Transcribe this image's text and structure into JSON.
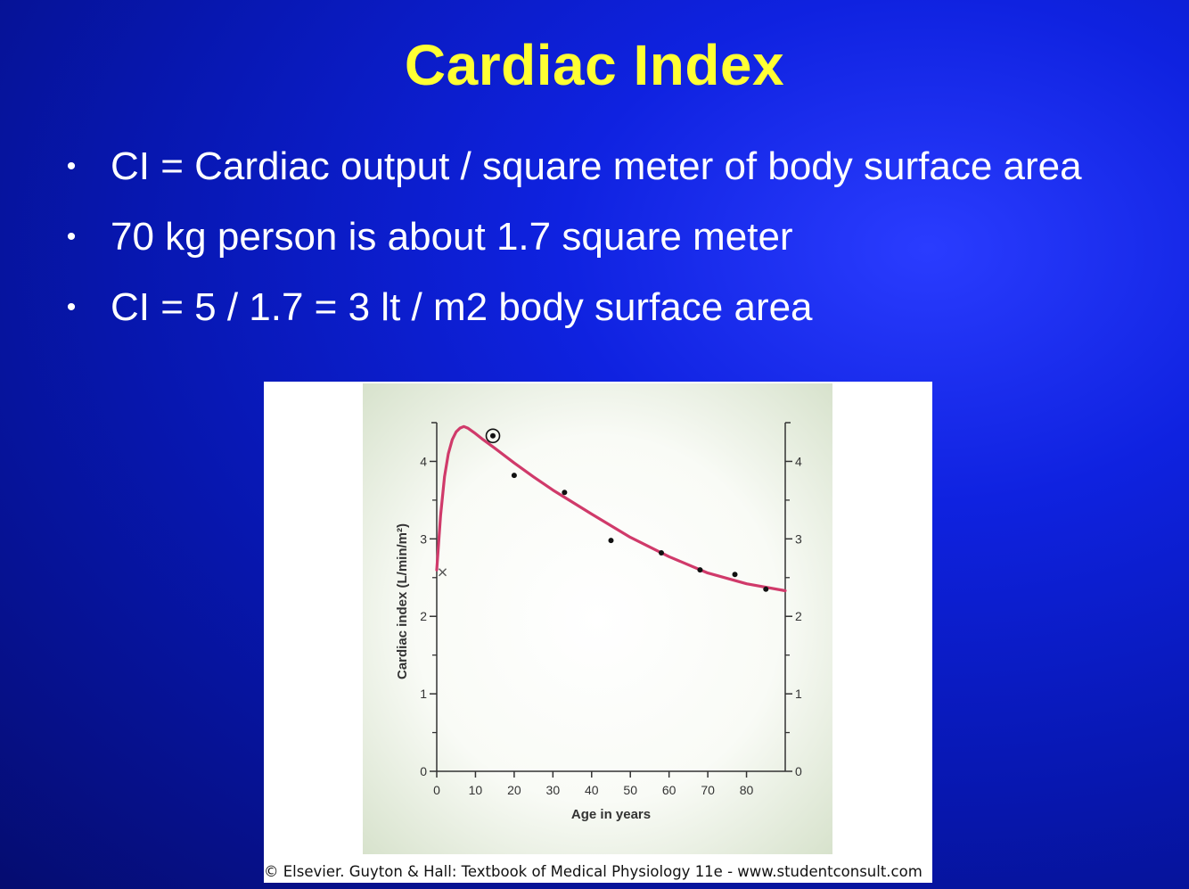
{
  "slide": {
    "title": "Cardiac Index",
    "bullets": [
      "CI = Cardiac output / square meter of body surface area",
      "70 kg person is about 1.7 square meter",
      "CI = 5 / 1.7 = 3 lt / m2 body surface area"
    ],
    "bullet_symbol": "•"
  },
  "figure": {
    "credit": "© Elsevier. Guyton & Hall: Textbook of Medical Physiology 11e - www.studentconsult.com"
  },
  "colors": {
    "background": "#0b1fd0",
    "title": "#ffff33",
    "text": "#ffffff",
    "curve": "#d03a6a"
  },
  "chart_data": {
    "type": "line",
    "xlabel": "Age in years",
    "ylabel": "Cardiac index (L/min/m²)",
    "xlim": [
      0,
      90
    ],
    "ylim": [
      0,
      4.5
    ],
    "x_ticks": [
      0,
      10,
      20,
      30,
      40,
      50,
      60,
      70,
      80
    ],
    "y_ticks": [
      0,
      1,
      2,
      3,
      4
    ],
    "right_axis_ticks": [
      0,
      1,
      2,
      3,
      4
    ],
    "grid": false,
    "series": [
      {
        "type": "line",
        "x": [
          0,
          1,
          2,
          3,
          4,
          5,
          6,
          7,
          8,
          10,
          12,
          15,
          20,
          25,
          30,
          40,
          50,
          60,
          70,
          80,
          90
        ],
        "y": [
          2.6,
          3.3,
          3.8,
          4.1,
          4.28,
          4.38,
          4.43,
          4.45,
          4.43,
          4.36,
          4.28,
          4.17,
          3.98,
          3.8,
          3.63,
          3.32,
          3.02,
          2.77,
          2.56,
          2.42,
          2.33
        ]
      },
      {
        "type": "scatter",
        "x": [
          20,
          33,
          45,
          58,
          68,
          77,
          85
        ],
        "y": [
          3.82,
          3.6,
          2.98,
          2.82,
          2.6,
          2.54,
          2.35
        ]
      }
    ],
    "special_markers": [
      {
        "marker": "circled-dot",
        "x": 14.5,
        "y": 4.33
      },
      {
        "marker": "x",
        "x": 1.5,
        "y": 2.57
      }
    ]
  }
}
